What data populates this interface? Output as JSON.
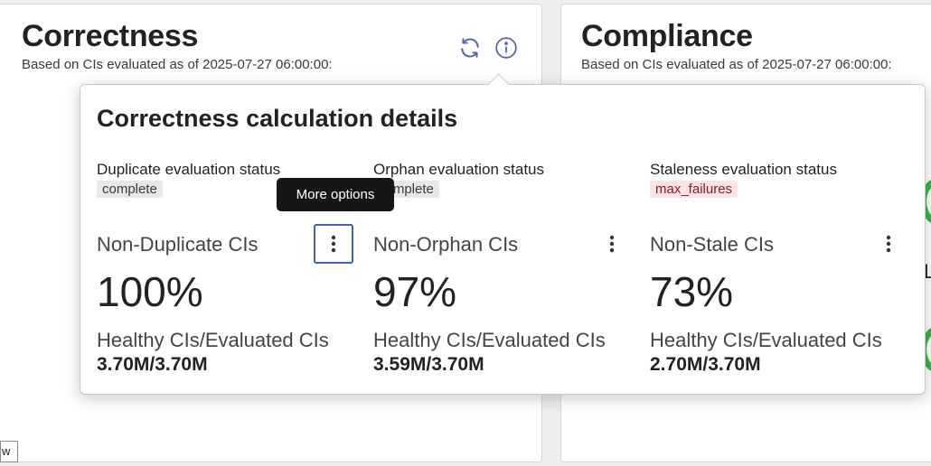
{
  "cards": {
    "correctness": {
      "title": "Correctness",
      "subtitle": "Based on CIs evaluated as of 2025-07-27 06:00:00:"
    },
    "compliance": {
      "title": "Compliance",
      "subtitle": "Based on CIs evaluated as of 2025-07-27 06:00:00:"
    }
  },
  "popover": {
    "title": "Correctness calculation details",
    "columns": [
      {
        "status_label": "Duplicate evaluation status",
        "status_value": "complete",
        "metric_name": "Non-Duplicate CIs",
        "percent": "100%",
        "ratio_label": "Healthy CIs/Evaluated CIs",
        "ratio": "3.70M/3.70M"
      },
      {
        "status_label": "Orphan evaluation status",
        "status_value": "complete",
        "metric_name": "Non-Orphan CIs",
        "percent": "97%",
        "ratio_label": "Healthy CIs/Evaluated CIs",
        "ratio": "3.59M/3.70M"
      },
      {
        "status_label": "Staleness evaluation status",
        "status_value": "max_failures",
        "metric_name": "Non-Stale CIs",
        "percent": "73%",
        "ratio_label": "Healthy CIs/Evaluated CIs",
        "ratio": "2.70M/3.70M"
      }
    ]
  },
  "tooltip": {
    "text": "More options"
  },
  "stray_text": {
    "right_edge": "L",
    "bottom_left": "w"
  },
  "icons": {
    "refresh": "refresh-icon",
    "info": "info-icon",
    "more": "more-vertical-icon"
  },
  "colors": {
    "accent": "#5a5fa8",
    "focus": "#3a64b8",
    "danger_badge_bg": "#fbe3e6",
    "neutral_badge_bg": "#e8e8e8",
    "green": "#3bb54a",
    "tooltip_bg": "#161616"
  }
}
